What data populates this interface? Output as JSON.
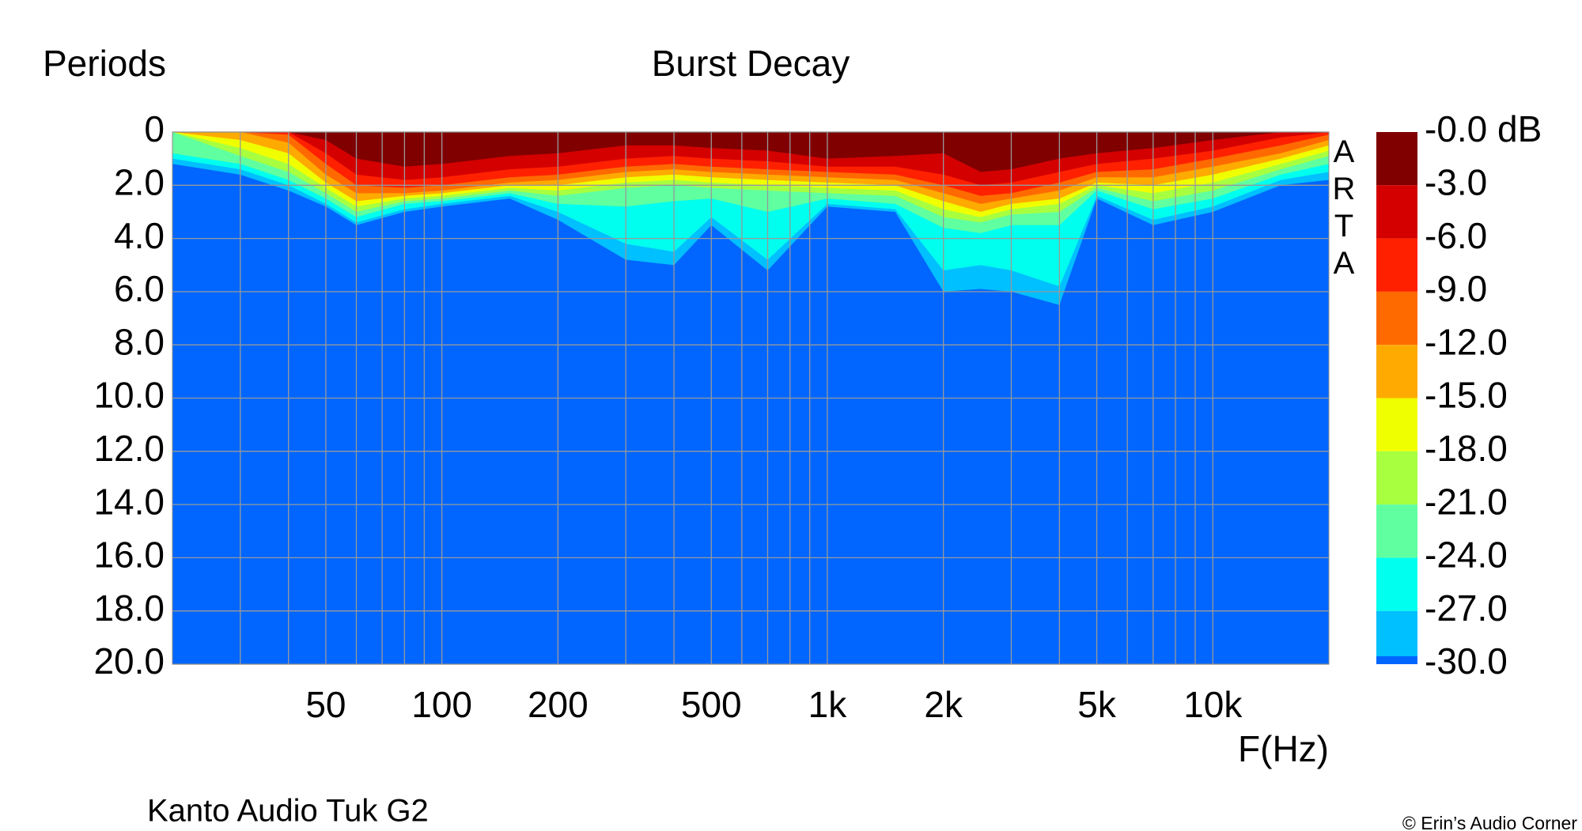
{
  "chart_data": {
    "type": "heatmap",
    "title": "Burst Decay",
    "y_label": "Periods",
    "x_label": "F(Hz)",
    "subtitle": "Kanto Audio Tuk G2",
    "credit": "© Erin’s Audio Corner",
    "watermark": "ARTA",
    "x_scale": "log",
    "grid": true,
    "xlim": [
      20,
      20000
    ],
    "xticks": [
      50,
      100,
      200,
      500,
      {
        "value": 1000,
        "label": "1k"
      },
      {
        "value": 2000,
        "label": "2k"
      },
      {
        "value": 5000,
        "label": "5k"
      },
      {
        "value": 10000,
        "label": "10k"
      }
    ],
    "xminorticks": [
      30,
      40,
      60,
      70,
      80,
      90,
      300,
      400,
      600,
      700,
      800,
      900,
      3000,
      4000,
      6000,
      7000,
      8000,
      9000
    ],
    "ylim": [
      0,
      20
    ],
    "yticks": [
      0,
      {
        "value": 2,
        "label": "2.0"
      },
      {
        "value": 4,
        "label": "4.0"
      },
      {
        "value": 6,
        "label": "6.0"
      },
      {
        "value": 8,
        "label": "8.0"
      },
      {
        "value": 10,
        "label": "10.0"
      },
      {
        "value": 12,
        "label": "12.0"
      },
      {
        "value": 14,
        "label": "14.0"
      },
      {
        "value": 16,
        "label": "16.0"
      },
      {
        "value": 18,
        "label": "18.0"
      },
      {
        "value": 20,
        "label": "20.0"
      }
    ],
    "zlim": [
      0,
      -30
    ],
    "zticks": [
      {
        "value": 0,
        "label": "-0.0 dB"
      },
      {
        "value": -3,
        "label": "-3.0"
      },
      {
        "value": -6,
        "label": "-6.0"
      },
      {
        "value": -9,
        "label": "-9.0"
      },
      {
        "value": -12,
        "label": "-12.0"
      },
      {
        "value": -15,
        "label": "-15.0"
      },
      {
        "value": -18,
        "label": "-18.0"
      },
      {
        "value": -21,
        "label": "-21.0"
      },
      {
        "value": -24,
        "label": "-24.0"
      },
      {
        "value": -27,
        "label": "-27.0"
      },
      {
        "value": -30,
        "label": "-30.0"
      }
    ],
    "background_color": "#0066ff",
    "x": [
      20,
      30,
      40,
      50,
      60,
      80,
      100,
      150,
      200,
      300,
      400,
      500,
      700,
      1000,
      1500,
      2000,
      2500,
      3000,
      4000,
      5000,
      7000,
      10000,
      15000,
      20000
    ],
    "series": [
      {
        "color": "#800000",
        "values": [
          0,
          0,
          0,
          0.3,
          1.0,
          1.3,
          1.2,
          0.9,
          0.8,
          0.5,
          0.5,
          0.6,
          0.7,
          1.0,
          0.9,
          0.8,
          1.5,
          1.4,
          1.0,
          0.8,
          0.6,
          0.3,
          0,
          0
        ]
      },
      {
        "color": "#d40000",
        "values": [
          0,
          0,
          0,
          0.8,
          1.6,
          1.8,
          1.7,
          1.4,
          1.3,
          1.0,
          0.9,
          1.0,
          1.1,
          1.3,
          1.3,
          1.6,
          2.0,
          1.9,
          1.5,
          1.2,
          1.0,
          0.7,
          0.2,
          0
        ]
      },
      {
        "color": "#ff2000",
        "values": [
          0,
          0,
          0.1,
          1.2,
          2.0,
          2.1,
          2.0,
          1.7,
          1.6,
          1.3,
          1.2,
          1.3,
          1.4,
          1.5,
          1.6,
          2.0,
          2.4,
          2.3,
          1.9,
          1.5,
          1.4,
          1.0,
          0.5,
          0.1
        ]
      },
      {
        "color": "#ff6a00",
        "values": [
          0,
          0,
          0.4,
          1.6,
          2.3,
          2.3,
          2.2,
          1.9,
          1.8,
          1.5,
          1.4,
          1.5,
          1.6,
          1.7,
          1.8,
          2.3,
          2.7,
          2.5,
          2.2,
          1.7,
          1.7,
          1.3,
          0.8,
          0.3
        ]
      },
      {
        "color": "#ffaa00",
        "values": [
          0,
          0.3,
          0.8,
          1.9,
          2.6,
          2.4,
          2.3,
          2.0,
          2.0,
          1.7,
          1.6,
          1.7,
          1.8,
          1.9,
          2.0,
          2.6,
          3.0,
          2.7,
          2.5,
          1.9,
          2.0,
          1.6,
          1.0,
          0.5
        ]
      },
      {
        "color": "#f0ff00",
        "values": [
          0,
          0.6,
          1.2,
          2.1,
          2.8,
          2.5,
          2.4,
          2.1,
          2.2,
          1.9,
          1.8,
          1.9,
          2.0,
          2.1,
          2.2,
          2.9,
          3.2,
          2.9,
          2.7,
          2.0,
          2.3,
          1.9,
          1.2,
          0.7
        ]
      },
      {
        "color": "#a8ff40",
        "values": [
          0,
          0.9,
          1.5,
          2.3,
          3.0,
          2.6,
          2.5,
          2.2,
          2.4,
          2.1,
          2.0,
          2.1,
          2.2,
          2.3,
          2.4,
          3.2,
          3.4,
          3.1,
          3.0,
          2.1,
          2.6,
          2.2,
          1.4,
          0.9
        ]
      },
      {
        "color": "#60ffa0",
        "values": [
          0.8,
          1.2,
          1.8,
          2.5,
          3.2,
          2.7,
          2.6,
          2.3,
          2.7,
          2.8,
          2.6,
          2.5,
          3.0,
          2.5,
          2.7,
          3.6,
          3.8,
          3.5,
          3.5,
          2.2,
          2.9,
          2.5,
          1.6,
          1.2
        ]
      },
      {
        "color": "#00ffee",
        "values": [
          1.0,
          1.4,
          2.0,
          2.7,
          3.4,
          2.9,
          2.7,
          2.4,
          3.0,
          4.2,
          4.5,
          3.2,
          4.8,
          2.7,
          2.9,
          5.2,
          5.0,
          5.2,
          5.8,
          2.4,
          3.3,
          2.8,
          1.8,
          1.5
        ]
      },
      {
        "color": "#00c0ff",
        "values": [
          1.2,
          1.6,
          2.2,
          2.8,
          3.5,
          3.0,
          2.8,
          2.5,
          3.3,
          4.8,
          5.0,
          3.5,
          5.2,
          2.8,
          3.0,
          6.0,
          5.9,
          6.0,
          6.5,
          2.5,
          3.5,
          3.0,
          2.0,
          1.8
        ]
      }
    ]
  }
}
